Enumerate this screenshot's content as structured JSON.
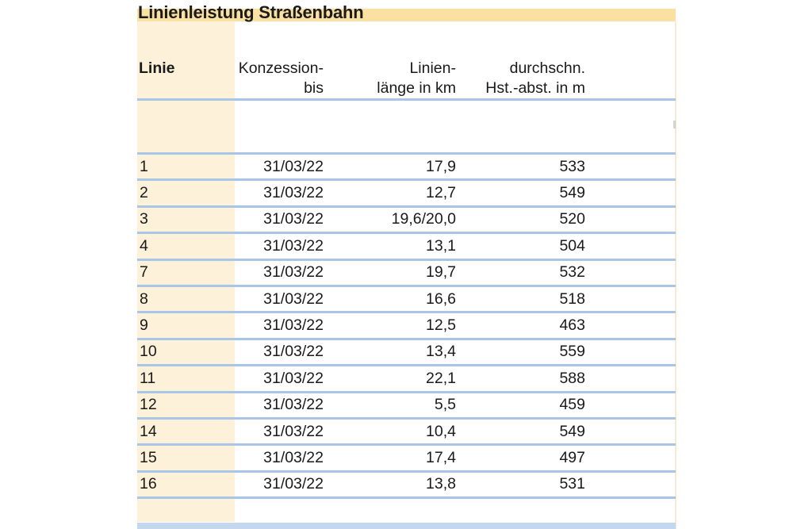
{
  "page": {
    "title": "Linienleistung Straßenbahn"
  },
  "table": {
    "columns": [
      {
        "id": "linie",
        "label_lines": [
          "Linie"
        ]
      },
      {
        "id": "konzession_bis",
        "label_lines": [
          "Konzession-",
          "bis"
        ]
      },
      {
        "id": "linienlaenge_km",
        "label_lines": [
          "Linien-",
          "länge in km"
        ]
      },
      {
        "id": "hst_abstand_m",
        "label_lines": [
          "durchschn.",
          "Hst.-abst. in m"
        ]
      }
    ],
    "rows": [
      {
        "linie": "1",
        "konzession_bis": "31/03/22",
        "linienlaenge_km": "17,9",
        "hst_abstand_m": "533"
      },
      {
        "linie": "2",
        "konzession_bis": "31/03/22",
        "linienlaenge_km": "12,7",
        "hst_abstand_m": "549"
      },
      {
        "linie": "3",
        "konzession_bis": "31/03/22",
        "linienlaenge_km": "19,6/20,0",
        "hst_abstand_m": "520"
      },
      {
        "linie": "4",
        "konzession_bis": "31/03/22",
        "linienlaenge_km": "13,1",
        "hst_abstand_m": "504"
      },
      {
        "linie": "7",
        "konzession_bis": "31/03/22",
        "linienlaenge_km": "19,7",
        "hst_abstand_m": "532"
      },
      {
        "linie": "8",
        "konzession_bis": "31/03/22",
        "linienlaenge_km": "16,6",
        "hst_abstand_m": "518"
      },
      {
        "linie": "9",
        "konzession_bis": "31/03/22",
        "linienlaenge_km": "12,5",
        "hst_abstand_m": "463"
      },
      {
        "linie": "10",
        "konzession_bis": "31/03/22",
        "linienlaenge_km": "13,4",
        "hst_abstand_m": "559"
      },
      {
        "linie": "11",
        "konzession_bis": "31/03/22",
        "linienlaenge_km": "22,1",
        "hst_abstand_m": "588"
      },
      {
        "linie": "12",
        "konzession_bis": "31/03/22",
        "linienlaenge_km": "5,5",
        "hst_abstand_m": "459"
      },
      {
        "linie": "14",
        "konzession_bis": "31/03/22",
        "linienlaenge_km": "10,4",
        "hst_abstand_m": "549"
      },
      {
        "linie": "15",
        "konzession_bis": "31/03/22",
        "linienlaenge_km": "17,4",
        "hst_abstand_m": "497"
      },
      {
        "linie": "16",
        "konzession_bis": "31/03/22",
        "linienlaenge_km": "13,8",
        "hst_abstand_m": "531"
      }
    ]
  },
  "colors": {
    "title_band": "#fbe1a1",
    "row_header_fill": "#fdf2d9",
    "rule_blue": "#a9c6e6",
    "bottom_band": "#c3d7ee",
    "text": "#1a1a1a"
  }
}
